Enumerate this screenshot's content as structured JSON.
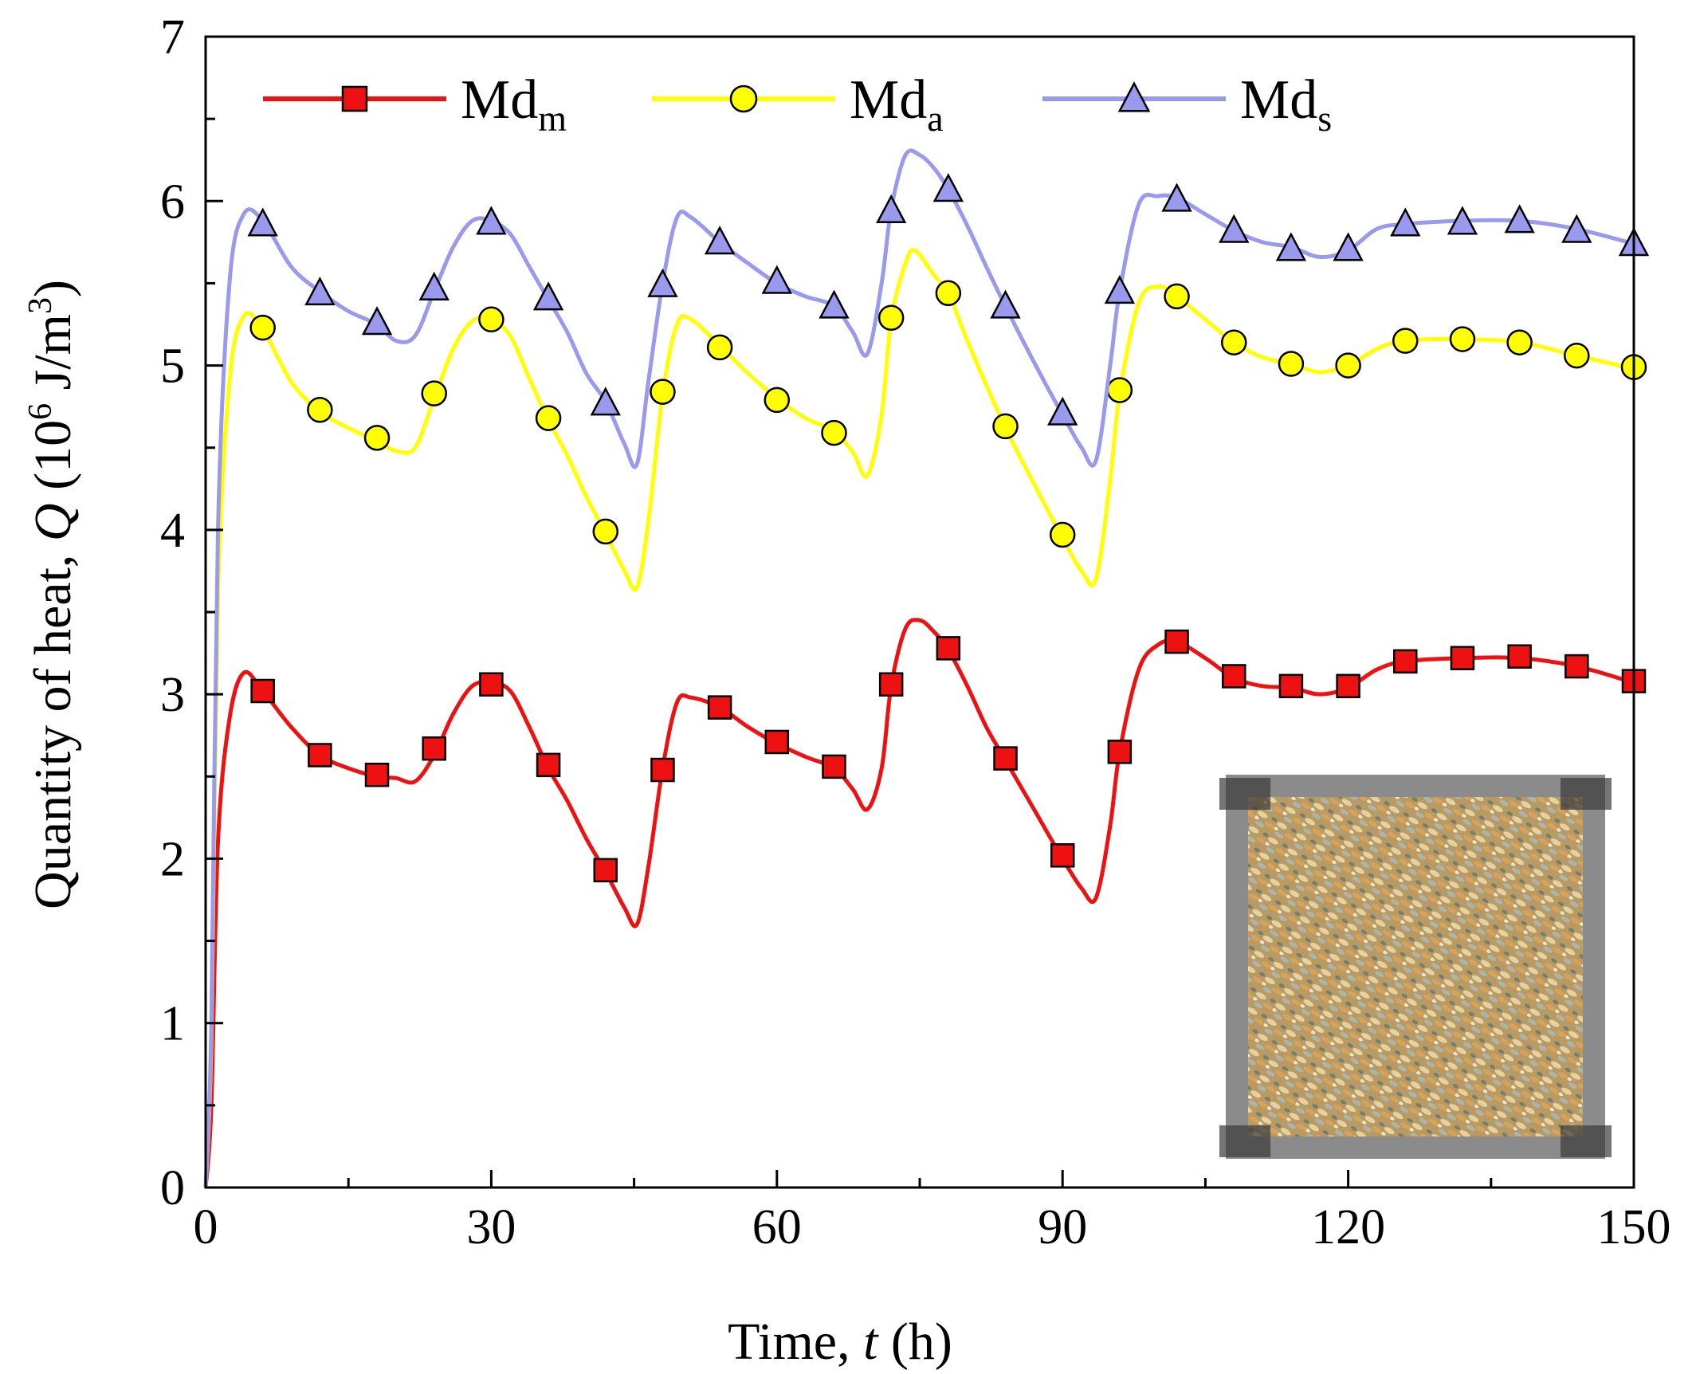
{
  "chart_data": {
    "type": "line",
    "xlabel": {
      "prefix": "Time, ",
      "var": "t",
      "suffix": " (h)"
    },
    "ylabel": {
      "prefix": "Quantity of heat, ",
      "var": "Q",
      "unit_open": " (10",
      "unit_exp": "6",
      "unit_mid": " J/m",
      "unit_exp2": "3",
      "unit_close": ")"
    },
    "xlim": [
      0,
      150
    ],
    "ylim": [
      0,
      7
    ],
    "x_ticks": [
      "0",
      "30",
      "60",
      "90",
      "120",
      "150"
    ],
    "y_ticks": [
      "0",
      "1",
      "2",
      "3",
      "4",
      "5",
      "6",
      "7"
    ],
    "grid": false,
    "legend_position": "top",
    "inset": "photograph of a square sample box filled with mouldy maize kernels, lower right",
    "series": [
      {
        "name": "Md",
        "name_sub": "m",
        "color": "#ee1111",
        "marker": "square",
        "marker_fill": "#ee1111",
        "line": [
          [
            0,
            0
          ],
          [
            0.6,
            0.5
          ],
          [
            1.3,
            2.1
          ],
          [
            2.5,
            2.85
          ],
          [
            4,
            3.13
          ],
          [
            6,
            3.02
          ],
          [
            9,
            2.8
          ],
          [
            12,
            2.63
          ],
          [
            15,
            2.55
          ],
          [
            18,
            2.5
          ],
          [
            20,
            2.49
          ],
          [
            22,
            2.47
          ],
          [
            24,
            2.63
          ],
          [
            26,
            2.88
          ],
          [
            28,
            3.05
          ],
          [
            30,
            3.07
          ],
          [
            32,
            3.02
          ],
          [
            34,
            2.8
          ],
          [
            36,
            2.55
          ],
          [
            38,
            2.35
          ],
          [
            40,
            2.12
          ],
          [
            42,
            1.92
          ],
          [
            44,
            1.7
          ],
          [
            45.3,
            1.6
          ],
          [
            46.5,
            1.95
          ],
          [
            48,
            2.55
          ],
          [
            49.5,
            2.95
          ],
          [
            51,
            2.98
          ],
          [
            54,
            2.92
          ],
          [
            57,
            2.8
          ],
          [
            60,
            2.7
          ],
          [
            63,
            2.62
          ],
          [
            66,
            2.55
          ],
          [
            68,
            2.42
          ],
          [
            69.5,
            2.3
          ],
          [
            71,
            2.55
          ],
          [
            72,
            3.05
          ],
          [
            73.5,
            3.4
          ],
          [
            75,
            3.45
          ],
          [
            76.5,
            3.38
          ],
          [
            78,
            3.27
          ],
          [
            80,
            3.05
          ],
          [
            82,
            2.8
          ],
          [
            84,
            2.6
          ],
          [
            87,
            2.3
          ],
          [
            90,
            2.0
          ],
          [
            92,
            1.82
          ],
          [
            93.5,
            1.76
          ],
          [
            95,
            2.2
          ],
          [
            96,
            2.65
          ],
          [
            98,
            3.15
          ],
          [
            100,
            3.3
          ],
          [
            102,
            3.32
          ],
          [
            105,
            3.22
          ],
          [
            108,
            3.1
          ],
          [
            111,
            3.05
          ],
          [
            114,
            3.04
          ],
          [
            117,
            3.0
          ],
          [
            120,
            3.04
          ],
          [
            123,
            3.15
          ],
          [
            126,
            3.2
          ],
          [
            132,
            3.22
          ],
          [
            138,
            3.22
          ],
          [
            144,
            3.17
          ],
          [
            150,
            3.07
          ]
        ],
        "markers": [
          [
            6,
            3.02
          ],
          [
            12,
            2.63
          ],
          [
            18,
            2.51
          ],
          [
            24,
            2.67
          ],
          [
            30,
            3.06
          ],
          [
            36,
            2.57
          ],
          [
            42,
            1.93
          ],
          [
            48,
            2.54
          ],
          [
            54,
            2.92
          ],
          [
            60,
            2.71
          ],
          [
            66,
            2.56
          ],
          [
            72,
            3.06
          ],
          [
            78,
            3.28
          ],
          [
            84,
            2.61
          ],
          [
            90,
            2.02
          ],
          [
            96,
            2.65
          ],
          [
            102,
            3.32
          ],
          [
            108,
            3.11
          ],
          [
            114,
            3.05
          ],
          [
            120,
            3.05
          ],
          [
            126,
            3.2
          ],
          [
            132,
            3.22
          ],
          [
            138,
            3.23
          ],
          [
            144,
            3.17
          ],
          [
            150,
            3.08
          ]
        ]
      },
      {
        "name": "Md",
        "name_sub": "a",
        "color": "#ffff00",
        "marker": "circle",
        "marker_fill": "#ffff00",
        "line": [
          [
            0,
            0
          ],
          [
            0.6,
            0.9
          ],
          [
            1.3,
            3.6
          ],
          [
            2.5,
            4.9
          ],
          [
            4,
            5.3
          ],
          [
            6,
            5.22
          ],
          [
            9,
            4.9
          ],
          [
            12,
            4.72
          ],
          [
            15,
            4.62
          ],
          [
            18,
            4.54
          ],
          [
            20,
            4.48
          ],
          [
            22,
            4.5
          ],
          [
            24,
            4.8
          ],
          [
            26,
            5.1
          ],
          [
            28,
            5.27
          ],
          [
            30,
            5.28
          ],
          [
            32,
            5.18
          ],
          [
            34,
            4.92
          ],
          [
            36,
            4.67
          ],
          [
            38,
            4.45
          ],
          [
            40,
            4.2
          ],
          [
            42,
            3.98
          ],
          [
            44,
            3.75
          ],
          [
            45.3,
            3.65
          ],
          [
            46.5,
            4.05
          ],
          [
            48,
            4.82
          ],
          [
            49.5,
            5.25
          ],
          [
            51,
            5.28
          ],
          [
            54,
            5.12
          ],
          [
            57,
            4.95
          ],
          [
            60,
            4.8
          ],
          [
            63,
            4.68
          ],
          [
            66,
            4.6
          ],
          [
            68,
            4.47
          ],
          [
            69.5,
            4.33
          ],
          [
            71,
            4.7
          ],
          [
            72,
            5.28
          ],
          [
            73.5,
            5.62
          ],
          [
            74.5,
            5.7
          ],
          [
            76.5,
            5.55
          ],
          [
            78,
            5.44
          ],
          [
            80,
            5.15
          ],
          [
            82,
            4.88
          ],
          [
            84,
            4.62
          ],
          [
            87,
            4.28
          ],
          [
            90,
            3.95
          ],
          [
            92,
            3.75
          ],
          [
            93.5,
            3.7
          ],
          [
            95,
            4.3
          ],
          [
            96,
            4.83
          ],
          [
            98,
            5.38
          ],
          [
            100,
            5.48
          ],
          [
            102,
            5.42
          ],
          [
            105,
            5.28
          ],
          [
            108,
            5.14
          ],
          [
            111,
            5.05
          ],
          [
            114,
            5.01
          ],
          [
            117,
            4.96
          ],
          [
            120,
            5.0
          ],
          [
            123,
            5.1
          ],
          [
            126,
            5.15
          ],
          [
            132,
            5.16
          ],
          [
            138,
            5.14
          ],
          [
            144,
            5.06
          ],
          [
            150,
            4.98
          ]
        ],
        "markers": [
          [
            6,
            5.23
          ],
          [
            12,
            4.73
          ],
          [
            18,
            4.56
          ],
          [
            24,
            4.83
          ],
          [
            30,
            5.28
          ],
          [
            36,
            4.68
          ],
          [
            42,
            3.99
          ],
          [
            48,
            4.84
          ],
          [
            54,
            5.11
          ],
          [
            60,
            4.79
          ],
          [
            66,
            4.59
          ],
          [
            72,
            5.29
          ],
          [
            78,
            5.44
          ],
          [
            84,
            4.63
          ],
          [
            90,
            3.97
          ],
          [
            96,
            4.85
          ],
          [
            102,
            5.42
          ],
          [
            108,
            5.14
          ],
          [
            114,
            5.01
          ],
          [
            120,
            5.0
          ],
          [
            126,
            5.15
          ],
          [
            132,
            5.16
          ],
          [
            138,
            5.14
          ],
          [
            144,
            5.06
          ],
          [
            150,
            4.99
          ]
        ]
      },
      {
        "name": "Md",
        "name_sub": "s",
        "color": "#9999ee",
        "marker": "triangle",
        "marker_fill": "#9999ee",
        "line": [
          [
            0,
            0
          ],
          [
            0.6,
            1.0
          ],
          [
            1.3,
            4.0
          ],
          [
            2.5,
            5.5
          ],
          [
            4,
            5.92
          ],
          [
            6,
            5.88
          ],
          [
            9,
            5.6
          ],
          [
            12,
            5.45
          ],
          [
            15,
            5.33
          ],
          [
            18,
            5.25
          ],
          [
            20,
            5.15
          ],
          [
            22,
            5.18
          ],
          [
            24,
            5.45
          ],
          [
            26,
            5.72
          ],
          [
            28,
            5.88
          ],
          [
            30,
            5.88
          ],
          [
            32,
            5.8
          ],
          [
            34,
            5.6
          ],
          [
            36,
            5.4
          ],
          [
            38,
            5.2
          ],
          [
            40,
            4.95
          ],
          [
            42,
            4.78
          ],
          [
            44,
            4.52
          ],
          [
            45.3,
            4.4
          ],
          [
            46.5,
            4.9
          ],
          [
            48,
            5.5
          ],
          [
            49.5,
            5.9
          ],
          [
            51,
            5.9
          ],
          [
            54,
            5.75
          ],
          [
            57,
            5.62
          ],
          [
            60,
            5.5
          ],
          [
            63,
            5.42
          ],
          [
            66,
            5.36
          ],
          [
            68,
            5.2
          ],
          [
            69.5,
            5.07
          ],
          [
            71,
            5.5
          ],
          [
            72,
            5.95
          ],
          [
            73.5,
            6.28
          ],
          [
            75,
            6.28
          ],
          [
            76.5,
            6.2
          ],
          [
            78,
            6.07
          ],
          [
            80,
            5.85
          ],
          [
            82,
            5.6
          ],
          [
            84,
            5.36
          ],
          [
            87,
            5.02
          ],
          [
            90,
            4.7
          ],
          [
            92,
            4.5
          ],
          [
            93.5,
            4.42
          ],
          [
            95,
            5.0
          ],
          [
            96,
            5.45
          ],
          [
            98,
            5.98
          ],
          [
            100,
            6.03
          ],
          [
            102,
            6.02
          ],
          [
            105,
            5.92
          ],
          [
            108,
            5.82
          ],
          [
            111,
            5.75
          ],
          [
            114,
            5.72
          ],
          [
            117,
            5.66
          ],
          [
            120,
            5.7
          ],
          [
            123,
            5.83
          ],
          [
            126,
            5.86
          ],
          [
            132,
            5.88
          ],
          [
            138,
            5.88
          ],
          [
            144,
            5.83
          ],
          [
            150,
            5.74
          ]
        ],
        "markers": [
          [
            6,
            5.86
          ],
          [
            12,
            5.44
          ],
          [
            18,
            5.26
          ],
          [
            24,
            5.47
          ],
          [
            30,
            5.87
          ],
          [
            36,
            5.41
          ],
          [
            42,
            4.77
          ],
          [
            48,
            5.49
          ],
          [
            54,
            5.75
          ],
          [
            60,
            5.51
          ],
          [
            66,
            5.36
          ],
          [
            72,
            5.94
          ],
          [
            78,
            6.07
          ],
          [
            84,
            5.36
          ],
          [
            90,
            4.71
          ],
          [
            96,
            5.45
          ],
          [
            102,
            6.01
          ],
          [
            108,
            5.82
          ],
          [
            114,
            5.71
          ],
          [
            120,
            5.71
          ],
          [
            126,
            5.86
          ],
          [
            132,
            5.87
          ],
          [
            138,
            5.88
          ],
          [
            144,
            5.82
          ],
          [
            150,
            5.74
          ]
        ]
      }
    ]
  }
}
